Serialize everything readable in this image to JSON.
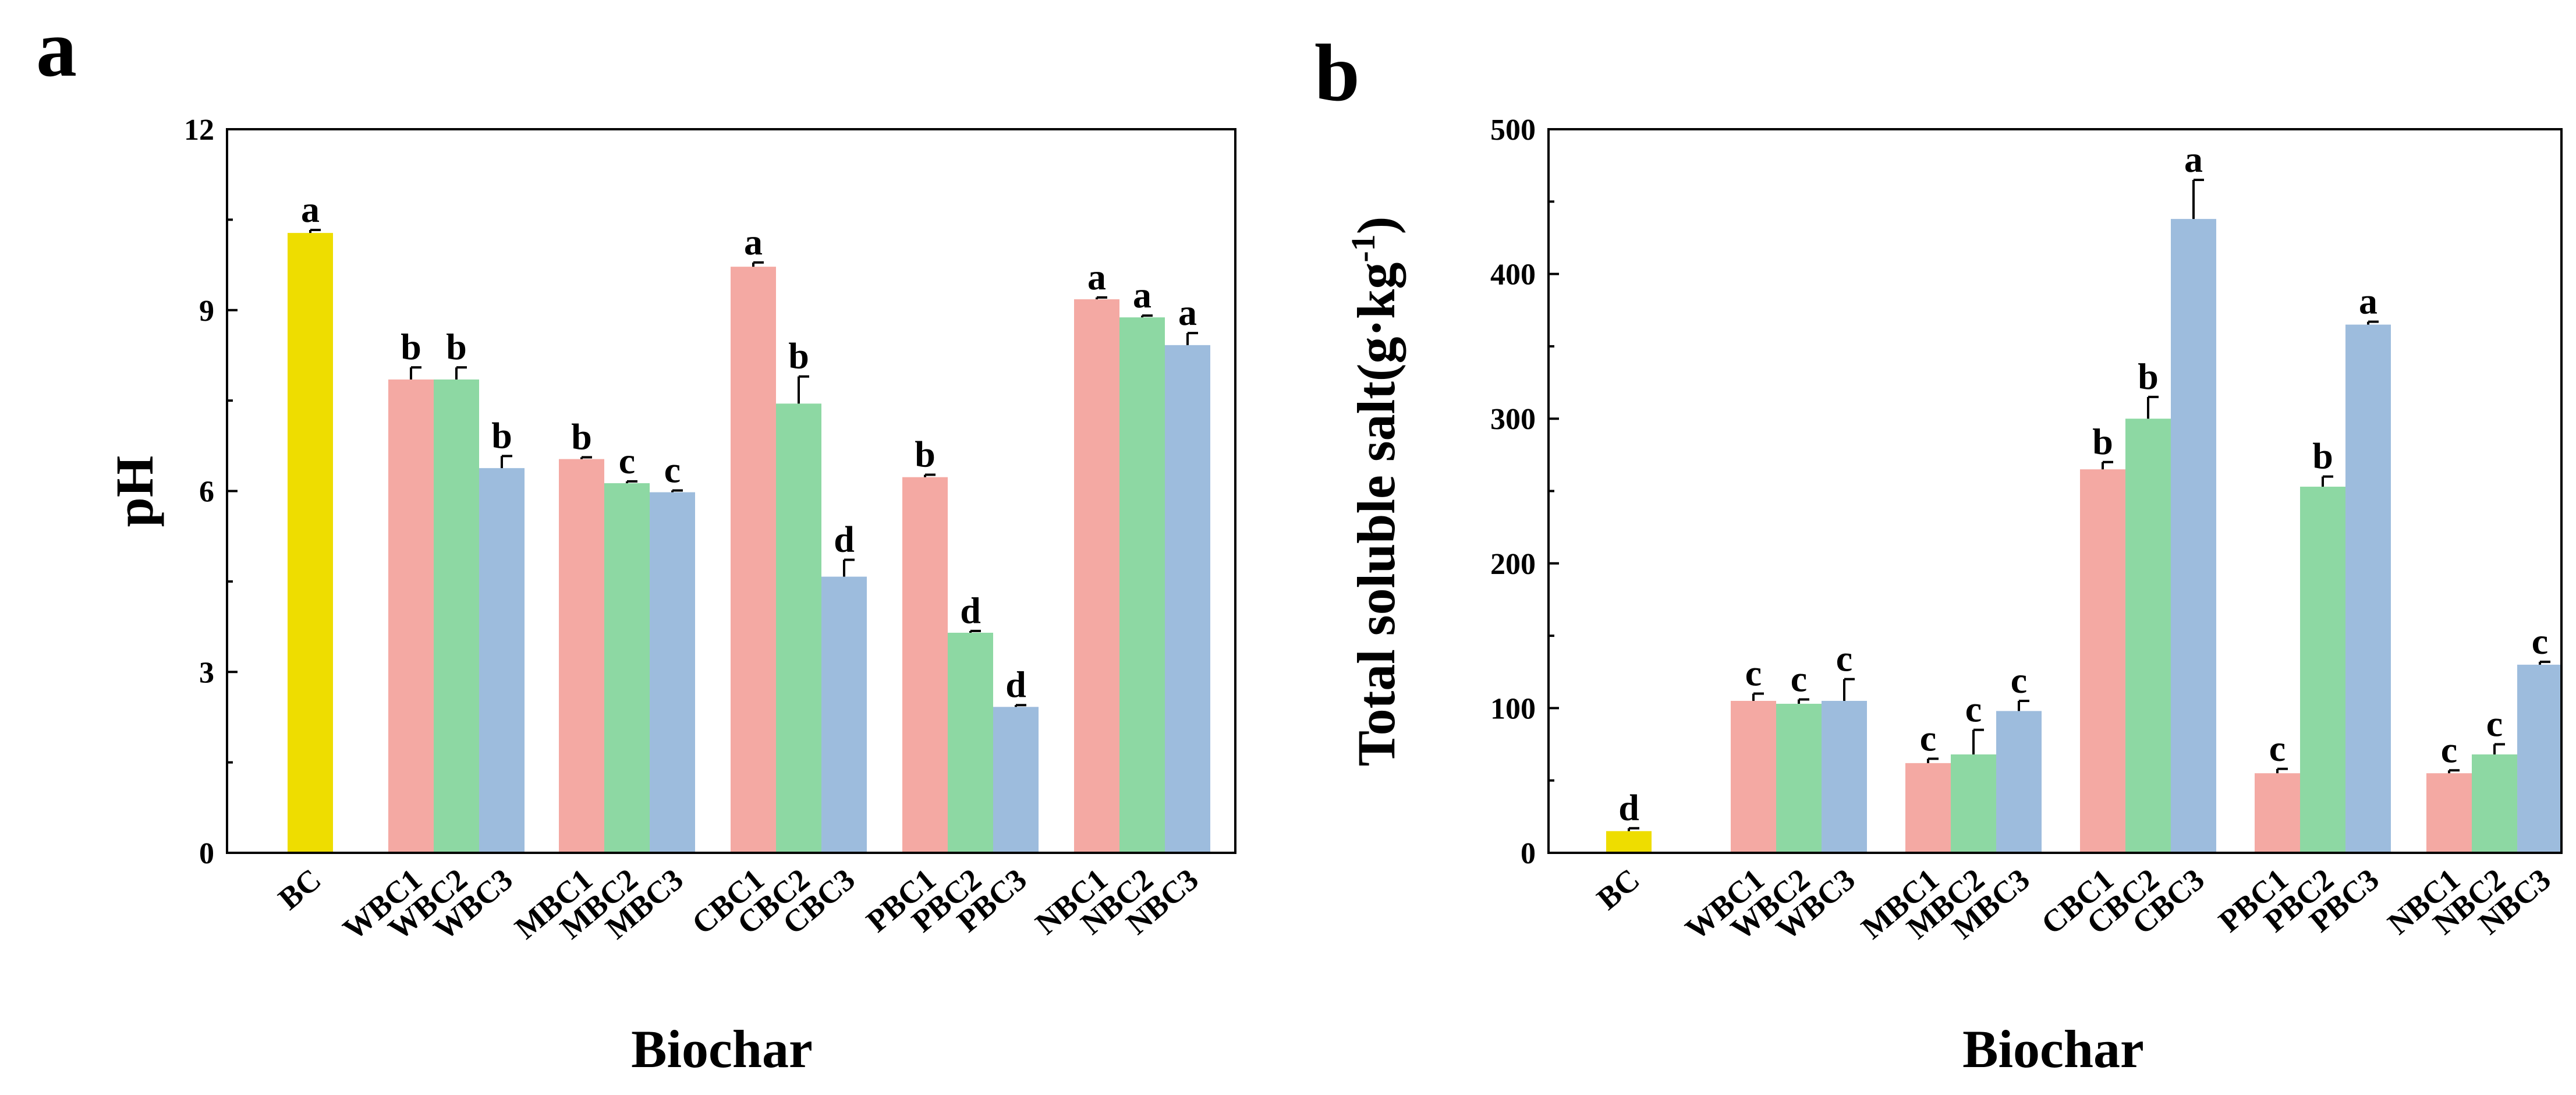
{
  "colors": {
    "BC": "#EEDD00",
    "series1": "#F4A9A3",
    "series2": "#8DD8A3",
    "series3": "#9DBCDD",
    "axis": "#000000"
  },
  "chart_data": [
    {
      "type": "bar",
      "panel": "a",
      "xlabel": "Biochar",
      "ylabel": "pH",
      "ylim": [
        0,
        12
      ],
      "yticks": [
        "0",
        "3",
        "6",
        "9",
        "12"
      ],
      "groups": [
        {
          "name": "BC",
          "bars": [
            {
              "label": "BC",
              "value": 10.28,
              "err": 0.05,
              "letter": "a",
              "color": "BC"
            }
          ]
        },
        {
          "name": "WBC",
          "bars": [
            {
              "label": "WBC1",
              "value": 7.85,
              "err": 0.2,
              "letter": "b",
              "color": "series1"
            },
            {
              "label": "WBC2",
              "value": 7.85,
              "err": 0.2,
              "letter": "b",
              "color": "series2"
            },
            {
              "label": "WBC3",
              "value": 6.38,
              "err": 0.2,
              "letter": "b",
              "color": "series3"
            }
          ]
        },
        {
          "name": "MBC",
          "bars": [
            {
              "label": "MBC1",
              "value": 6.53,
              "err": 0.03,
              "letter": "b",
              "color": "series1"
            },
            {
              "label": "MBC2",
              "value": 6.13,
              "err": 0.03,
              "letter": "c",
              "color": "series2"
            },
            {
              "label": "MBC3",
              "value": 5.98,
              "err": 0.03,
              "letter": "c",
              "color": "series3"
            }
          ]
        },
        {
          "name": "CBC",
          "bars": [
            {
              "label": "CBC1",
              "value": 9.72,
              "err": 0.07,
              "letter": "a",
              "color": "series1"
            },
            {
              "label": "CBC2",
              "value": 7.45,
              "err": 0.45,
              "letter": "b",
              "color": "series2"
            },
            {
              "label": "CBC3",
              "value": 4.58,
              "err": 0.28,
              "letter": "d",
              "color": "series3"
            }
          ]
        },
        {
          "name": "PBC",
          "bars": [
            {
              "label": "PBC1",
              "value": 6.23,
              "err": 0.04,
              "letter": "b",
              "color": "series1"
            },
            {
              "label": "PBC2",
              "value": 3.65,
              "err": 0.03,
              "letter": "d",
              "color": "series2"
            },
            {
              "label": "PBC3",
              "value": 2.42,
              "err": 0.03,
              "letter": "d",
              "color": "series3"
            }
          ]
        },
        {
          "name": "NBC",
          "bars": [
            {
              "label": "NBC1",
              "value": 9.18,
              "err": 0.03,
              "letter": "a",
              "color": "series1"
            },
            {
              "label": "NBC2",
              "value": 8.88,
              "err": 0.03,
              "letter": "a",
              "color": "series2"
            },
            {
              "label": "NBC3",
              "value": 8.42,
              "err": 0.2,
              "letter": "a",
              "color": "series3"
            }
          ]
        }
      ]
    },
    {
      "type": "bar",
      "panel": "b",
      "xlabel": "Biochar",
      "ylabel": "Total soluble salt(g·kg",
      "ylabel_sup": "-1",
      "ylabel_end": ")",
      "ylim": [
        0,
        500
      ],
      "yticks": [
        "0",
        "100",
        "200",
        "300",
        "400",
        "500"
      ],
      "groups": [
        {
          "name": "BC",
          "bars": [
            {
              "label": "BC",
              "value": 15,
              "err": 2,
              "letter": "d",
              "color": "BC"
            }
          ]
        },
        {
          "name": "WBC",
          "bars": [
            {
              "label": "WBC1",
              "value": 105,
              "err": 5,
              "letter": "c",
              "color": "series1"
            },
            {
              "label": "WBC2",
              "value": 103,
              "err": 3,
              "letter": "c",
              "color": "series2"
            },
            {
              "label": "WBC3",
              "value": 105,
              "err": 15,
              "letter": "c",
              "color": "series3"
            }
          ]
        },
        {
          "name": "MBC",
          "bars": [
            {
              "label": "MBC1",
              "value": 62,
              "err": 3,
              "letter": "c",
              "color": "series1"
            },
            {
              "label": "MBC2",
              "value": 68,
              "err": 17,
              "letter": "c",
              "color": "series2"
            },
            {
              "label": "MBC3",
              "value": 98,
              "err": 7,
              "letter": "c",
              "color": "series3"
            }
          ]
        },
        {
          "name": "CBC",
          "bars": [
            {
              "label": "CBC1",
              "value": 265,
              "err": 5,
              "letter": "b",
              "color": "series1"
            },
            {
              "label": "CBC2",
              "value": 300,
              "err": 15,
              "letter": "b",
              "color": "series2"
            },
            {
              "label": "CBC3",
              "value": 438,
              "err": 27,
              "letter": "a",
              "color": "series3"
            }
          ]
        },
        {
          "name": "PBC",
          "bars": [
            {
              "label": "PBC1",
              "value": 55,
              "err": 3,
              "letter": "c",
              "color": "series1"
            },
            {
              "label": "PBC2",
              "value": 253,
              "err": 7,
              "letter": "b",
              "color": "series2"
            },
            {
              "label": "PBC3",
              "value": 365,
              "err": 2,
              "letter": "a",
              "color": "series3"
            }
          ]
        },
        {
          "name": "NBC",
          "bars": [
            {
              "label": "NBC1",
              "value": 55,
              "err": 2,
              "letter": "c",
              "color": "series1"
            },
            {
              "label": "NBC2",
              "value": 68,
              "err": 7,
              "letter": "c",
              "color": "series2"
            },
            {
              "label": "NBC3",
              "value": 130,
              "err": 2,
              "letter": "c",
              "color": "series3"
            }
          ]
        }
      ]
    }
  ]
}
